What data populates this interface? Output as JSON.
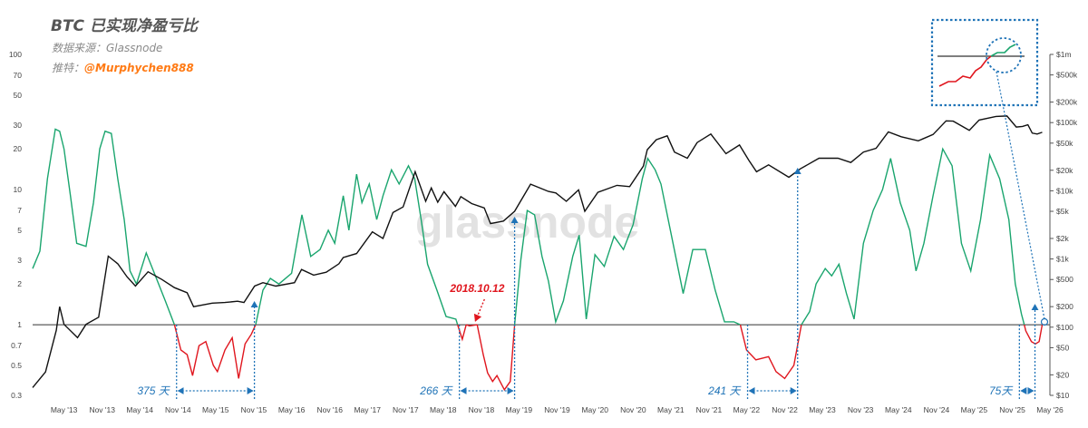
{
  "header": {
    "title": "BTC 已实现净盈亏比",
    "source": "数据来源：Glassnode",
    "twitter_label": "推特：",
    "twitter_handle": "@Murphychen888"
  },
  "chart_data": {
    "type": "line",
    "watermark": "glassnode",
    "left_axis": {
      "scale": "log",
      "range": [
        0.3,
        100
      ],
      "ticks": [
        "100",
        "70",
        "50",
        "30",
        "20",
        "10",
        "7",
        "5",
        "3",
        "2",
        "1",
        "0.7",
        "0.5",
        "0.3"
      ]
    },
    "right_axis": {
      "scale": "log",
      "range": [
        10,
        1000000
      ],
      "ticks": [
        "$1m",
        "$500k",
        "$200k",
        "$100k",
        "$50k",
        "$20k",
        "$10k",
        "$5k",
        "$2k",
        "$1k",
        "$500",
        "$200",
        "$100",
        "$50",
        "$20",
        "$10"
      ]
    },
    "x_ticks": [
      "May '13",
      "Nov '13",
      "May '14",
      "Nov '14",
      "May '15",
      "Nov '15",
      "May '16",
      "Nov '16",
      "May '17",
      "Nov '17",
      "May '18",
      "Nov '18",
      "May '19",
      "Nov '19",
      "May '20",
      "Nov '20",
      "May '21",
      "Nov '21",
      "May '22",
      "Nov '22",
      "May '23",
      "Nov '23",
      "May '24",
      "Nov '24",
      "May '25",
      "Nov '25",
      "May '26"
    ],
    "reference_line": 1,
    "series": [
      {
        "key": "ratio",
        "color_above": "#1aa56e",
        "color_below": "#e0161e",
        "points": [
          [
            "2012-12-01",
            2.6
          ],
          [
            "2013-01-05",
            3.5
          ],
          [
            "2013-02-10",
            12
          ],
          [
            "2013-03-20",
            28
          ],
          [
            "2013-04-10",
            27
          ],
          [
            "2013-05-01",
            20
          ],
          [
            "2013-06-01",
            9
          ],
          [
            "2013-07-01",
            4
          ],
          [
            "2013-08-15",
            3.8
          ],
          [
            "2013-09-20",
            8
          ],
          [
            "2013-10-20",
            20
          ],
          [
            "2013-11-15",
            27
          ],
          [
            "2013-12-15",
            26
          ],
          [
            "2014-01-15",
            12
          ],
          [
            "2014-02-15",
            6
          ],
          [
            "2014-03-15",
            2.5
          ],
          [
            "2014-04-15",
            2
          ],
          [
            "2014-06-01",
            3.4
          ],
          [
            "2014-07-15",
            2.3
          ],
          [
            "2014-09-01",
            1.5
          ],
          [
            "2014-10-15",
            1.0
          ],
          [
            "2014-11-15",
            0.65
          ],
          [
            "2014-12-15",
            0.6
          ],
          [
            "2015-01-10",
            0.42
          ],
          [
            "2015-02-10",
            0.7
          ],
          [
            "2015-03-15",
            0.75
          ],
          [
            "2015-04-20",
            0.5
          ],
          [
            "2015-05-10",
            0.45
          ],
          [
            "2015-06-15",
            0.65
          ],
          [
            "2015-07-20",
            0.8
          ],
          [
            "2015-08-20",
            0.4
          ],
          [
            "2015-09-20",
            0.72
          ],
          [
            "2015-10-20",
            0.85
          ],
          [
            "2015-11-10",
            1.0
          ],
          [
            "2015-12-15",
            1.8
          ],
          [
            "2016-01-20",
            2.2
          ],
          [
            "2016-03-01",
            2.0
          ],
          [
            "2016-05-01",
            2.4
          ],
          [
            "2016-06-20",
            6.5
          ],
          [
            "2016-08-01",
            3.2
          ],
          [
            "2016-09-15",
            3.6
          ],
          [
            "2016-10-25",
            5
          ],
          [
            "2016-11-25",
            4
          ],
          [
            "2017-01-05",
            9
          ],
          [
            "2017-02-01",
            5
          ],
          [
            "2017-03-10",
            13
          ],
          [
            "2017-04-05",
            8
          ],
          [
            "2017-05-10",
            11
          ],
          [
            "2017-06-15",
            6
          ],
          [
            "2017-07-15",
            9
          ],
          [
            "2017-08-25",
            14
          ],
          [
            "2017-10-01",
            11
          ],
          [
            "2017-11-15",
            15
          ],
          [
            "2017-12-15",
            12
          ],
          [
            "2018-01-15",
            6
          ],
          [
            "2018-02-15",
            2.8
          ],
          [
            "2018-04-01",
            1.8
          ],
          [
            "2018-05-15",
            1.15
          ],
          [
            "2018-07-01",
            1.1
          ],
          [
            "2018-08-01",
            0.78
          ],
          [
            "2018-08-20",
            1.0
          ],
          [
            "2018-09-05",
            0.98
          ],
          [
            "2018-10-12",
            1.0
          ],
          [
            "2018-11-10",
            0.6
          ],
          [
            "2018-12-01",
            0.44
          ],
          [
            "2018-12-25",
            0.38
          ],
          [
            "2019-01-15",
            0.42
          ],
          [
            "2019-02-20",
            0.33
          ],
          [
            "2019-03-20",
            0.38
          ],
          [
            "2019-04-10",
            1.0
          ],
          [
            "2019-05-10",
            3
          ],
          [
            "2019-06-10",
            7
          ],
          [
            "2019-07-15",
            6.5
          ],
          [
            "2019-08-20",
            3.2
          ],
          [
            "2019-09-20",
            2.1
          ],
          [
            "2019-10-25",
            1.05
          ],
          [
            "2019-12-01",
            1.5
          ],
          [
            "2020-01-15",
            3.2
          ],
          [
            "2020-02-15",
            4.6
          ],
          [
            "2020-03-20",
            1.1
          ],
          [
            "2020-05-01",
            3.3
          ],
          [
            "2020-06-15",
            2.7
          ],
          [
            "2020-08-01",
            4.5
          ],
          [
            "2020-09-15",
            3.6
          ],
          [
            "2020-11-01",
            5.5
          ],
          [
            "2020-12-15",
            12
          ],
          [
            "2021-01-10",
            17
          ],
          [
            "2021-02-15",
            14
          ],
          [
            "2021-03-15",
            11
          ],
          [
            "2021-05-15",
            3.8
          ],
          [
            "2021-06-30",
            1.7
          ],
          [
            "2021-08-15",
            3.6
          ],
          [
            "2021-10-15",
            3.6
          ],
          [
            "2021-12-01",
            1.8
          ],
          [
            "2022-01-15",
            1.05
          ],
          [
            "2022-03-01",
            1.05
          ],
          [
            "2022-04-01",
            1.0
          ],
          [
            "2022-05-01",
            0.65
          ],
          [
            "2022-06-15",
            0.55
          ],
          [
            "2022-08-15",
            0.58
          ],
          [
            "2022-09-20",
            0.45
          ],
          [
            "2022-11-01",
            0.4
          ],
          [
            "2022-12-15",
            0.5
          ],
          [
            "2023-01-20",
            1.0
          ],
          [
            "2023-03-01",
            1.25
          ],
          [
            "2023-04-01",
            2.0
          ],
          [
            "2023-05-15",
            2.6
          ],
          [
            "2023-06-15",
            2.3
          ],
          [
            "2023-07-20",
            2.8
          ],
          [
            "2023-08-25",
            1.7
          ],
          [
            "2023-10-01",
            1.1
          ],
          [
            "2023-11-15",
            4
          ],
          [
            "2024-01-01",
            7
          ],
          [
            "2024-02-15",
            10
          ],
          [
            "2024-03-25",
            17
          ],
          [
            "2024-05-10",
            8
          ],
          [
            "2024-06-25",
            5
          ],
          [
            "2024-07-25",
            2.5
          ],
          [
            "2024-09-01",
            4
          ],
          [
            "2024-10-15",
            9
          ],
          [
            "2024-12-01",
            20
          ],
          [
            "2025-01-15",
            15
          ],
          [
            "2025-03-01",
            4
          ],
          [
            "2025-04-15",
            2.5
          ],
          [
            "2025-06-01",
            6
          ],
          [
            "2025-07-15",
            18
          ],
          [
            "2025-09-01",
            12
          ],
          [
            "2025-10-15",
            6
          ],
          [
            "2025-11-15",
            2
          ],
          [
            "2025-12-15",
            1.2
          ],
          [
            "2026-01-05",
            0.9
          ],
          [
            "2026-02-01",
            0.75
          ],
          [
            "2026-02-20",
            0.72
          ],
          [
            "2026-03-10",
            0.75
          ],
          [
            "2026-03-25",
            1.0
          ]
        ]
      },
      {
        "key": "price",
        "axis": "right",
        "color": "#111111",
        "points": [
          [
            "2012-12-01",
            13
          ],
          [
            "2013-02-01",
            22
          ],
          [
            "2013-03-25",
            90
          ],
          [
            "2013-04-10",
            200
          ],
          [
            "2013-05-01",
            110
          ],
          [
            "2013-07-05",
            70
          ],
          [
            "2013-08-15",
            110
          ],
          [
            "2013-10-15",
            140
          ],
          [
            "2013-11-30",
            1100
          ],
          [
            "2014-01-15",
            850
          ],
          [
            "2014-02-28",
            550
          ],
          [
            "2014-04-10",
            400
          ],
          [
            "2014-06-10",
            650
          ],
          [
            "2014-08-15",
            500
          ],
          [
            "2014-10-15",
            380
          ],
          [
            "2014-12-15",
            320
          ],
          [
            "2015-01-15",
            200
          ],
          [
            "2015-04-15",
            225
          ],
          [
            "2015-06-15",
            230
          ],
          [
            "2015-08-15",
            240
          ],
          [
            "2015-09-15",
            230
          ],
          [
            "2015-11-05",
            400
          ],
          [
            "2015-12-15",
            450
          ],
          [
            "2016-02-15",
            400
          ],
          [
            "2016-05-15",
            450
          ],
          [
            "2016-06-18",
            700
          ],
          [
            "2016-08-15",
            580
          ],
          [
            "2016-10-15",
            640
          ],
          [
            "2016-12-15",
            850
          ],
          [
            "2017-01-05",
            1050
          ],
          [
            "2017-03-10",
            1200
          ],
          [
            "2017-05-25",
            2500
          ],
          [
            "2017-07-15",
            2000
          ],
          [
            "2017-09-01",
            4800
          ],
          [
            "2017-10-20",
            5800
          ],
          [
            "2017-12-17",
            19000
          ],
          [
            "2018-02-06",
            7000
          ],
          [
            "2018-03-05",
            11000
          ],
          [
            "2018-04-05",
            6800
          ],
          [
            "2018-05-05",
            9700
          ],
          [
            "2018-06-29",
            5900
          ],
          [
            "2018-07-25",
            8200
          ],
          [
            "2018-09-15",
            6500
          ],
          [
            "2018-11-15",
            5600
          ],
          [
            "2018-12-15",
            3300
          ],
          [
            "2019-02-15",
            3600
          ],
          [
            "2019-04-10",
            5000
          ],
          [
            "2019-06-26",
            12500
          ],
          [
            "2019-09-20",
            9800
          ],
          [
            "2019-10-26",
            9300
          ],
          [
            "2019-12-15",
            7000
          ],
          [
            "2020-02-12",
            10300
          ],
          [
            "2020-03-13",
            5000
          ],
          [
            "2020-05-15",
            9500
          ],
          [
            "2020-08-15",
            12000
          ],
          [
            "2020-10-15",
            11500
          ],
          [
            "2020-12-20",
            23000
          ],
          [
            "2021-01-08",
            40000
          ],
          [
            "2021-02-20",
            56000
          ],
          [
            "2021-04-14",
            64000
          ],
          [
            "2021-05-19",
            37000
          ],
          [
            "2021-07-20",
            30000
          ],
          [
            "2021-09-05",
            51000
          ],
          [
            "2021-11-10",
            68000
          ],
          [
            "2022-01-22",
            35000
          ],
          [
            "2022-03-28",
            47000
          ],
          [
            "2022-05-12",
            28000
          ],
          [
            "2022-06-18",
            19000
          ],
          [
            "2022-08-15",
            24000
          ],
          [
            "2022-11-21",
            15800
          ],
          [
            "2023-01-15",
            21000
          ],
          [
            "2023-04-15",
            30000
          ],
          [
            "2023-07-15",
            30000
          ],
          [
            "2023-09-15",
            26000
          ],
          [
            "2023-11-15",
            37000
          ],
          [
            "2024-01-15",
            42000
          ],
          [
            "2024-03-14",
            73000
          ],
          [
            "2024-05-15",
            62000
          ],
          [
            "2024-08-05",
            54000
          ],
          [
            "2024-10-15",
            67000
          ],
          [
            "2024-12-17",
            106000
          ],
          [
            "2025-01-20",
            105000
          ],
          [
            "2025-04-08",
            77000
          ],
          [
            "2025-05-25",
            109000
          ],
          [
            "2025-08-14",
            123000
          ],
          [
            "2025-10-06",
            125000
          ],
          [
            "2025-11-20",
            86000
          ],
          [
            "2025-12-20",
            88000
          ],
          [
            "2026-01-15",
            93000
          ],
          [
            "2026-02-05",
            70000
          ],
          [
            "2026-03-01",
            68000
          ],
          [
            "2026-03-25",
            72000
          ]
        ]
      }
    ],
    "annotations": [
      {
        "label": "375 天",
        "from": "2014-10-25",
        "to": "2015-11-04"
      },
      {
        "label": "266 天",
        "from": "2018-07-18",
        "to": "2019-04-10"
      },
      {
        "label": "241 天",
        "from": "2022-05-06",
        "to": "2023-01-02"
      },
      {
        "label": "75天",
        "from": "2025-12-05",
        "to": "2026-02-18"
      }
    ],
    "callout": {
      "label": "2018.10.12",
      "date": "2018-10-12"
    }
  }
}
